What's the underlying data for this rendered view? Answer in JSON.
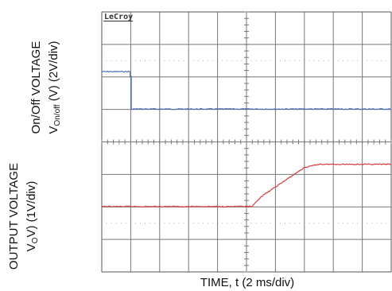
{
  "chart_data": {
    "type": "line",
    "instrument_logo": "LeCroy",
    "xlabel": "TIME, t (2 ms/div)",
    "grid": true,
    "x_divisions": 10,
    "y_divisions": 8,
    "x_unit_per_div": "2 ms",
    "series": [
      {
        "name": "On/Off VOLTAGE",
        "ylabel_line1": "On/Off VOLTAGE",
        "ylabel_line2": {
          "base": "V",
          "sub": "On/off",
          "rest": " (V) (2V/div)"
        },
        "color": "#4a6fb5",
        "unit": "V",
        "volts_per_div": 2,
        "points": [
          [
            0,
            2.3
          ],
          [
            0.98,
            2.3
          ],
          [
            0.98,
            2.0
          ],
          [
            1.02,
            2.0
          ],
          [
            1.02,
            0
          ],
          [
            10,
            0
          ]
        ]
      },
      {
        "name": "OUTPUT VOLTAGE",
        "ylabel_line1": "OUTPUT VOLTAGE",
        "ylabel_line2": {
          "base": "V",
          "sub": "O",
          "rest": "V) (1V/div)"
        },
        "color": "#d43c3c",
        "unit": "V",
        "volts_per_div": 1,
        "points": [
          [
            0,
            0
          ],
          [
            5.2,
            0
          ],
          [
            5.5,
            0.3
          ],
          [
            6.0,
            0.6
          ],
          [
            6.5,
            0.9
          ],
          [
            7.0,
            1.2
          ],
          [
            7.5,
            1.3
          ],
          [
            10,
            1.3
          ]
        ]
      }
    ]
  }
}
